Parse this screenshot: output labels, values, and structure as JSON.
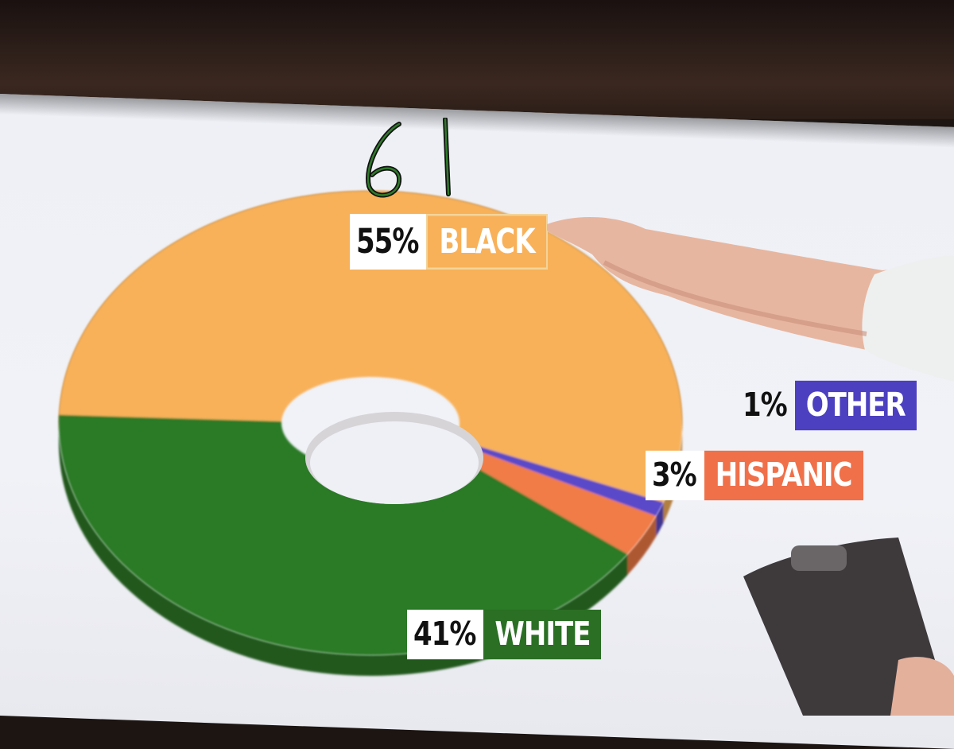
{
  "chart_data": {
    "type": "pie",
    "style": "donut",
    "slices": [
      {
        "label": "BLACK",
        "value": 55,
        "display": "55%",
        "color": "#f8b159"
      },
      {
        "label": "OTHER",
        "value": 1,
        "display": "1%",
        "color": "#5a49c8"
      },
      {
        "label": "HISPANIC",
        "value": 3,
        "display": "3%",
        "color": "#f17c47"
      },
      {
        "label": "WHITE",
        "value": 41,
        "display": "41%",
        "color": "#2c7a28"
      }
    ]
  },
  "annotation": {
    "handwritten": "61"
  },
  "colors": {
    "screen_bg": "#eef0f6",
    "other_badge": "#4c3fc0",
    "hispanic_badge": "#f0704a",
    "white_badge": "#2a6f24",
    "black_badge": "#f8b159"
  },
  "scene": {
    "arm": "pointing-hand",
    "tablet": "clipboard"
  }
}
